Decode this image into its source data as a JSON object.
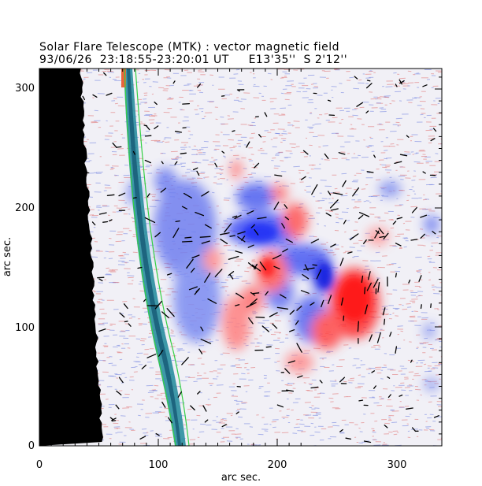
{
  "header": {
    "title": "Solar Flare Telescope (MTK) : vector magnetic field",
    "subtitle": "93/06/26  23:18:55-23:20:01 UT     E13'35''  S 2'12''"
  },
  "axes": {
    "xlabel": "arc sec.",
    "ylabel": "arc sec.",
    "xlim": [
      0,
      338
    ],
    "ylim": [
      0,
      315
    ],
    "xticks": [
      "0",
      "100",
      "200",
      "300"
    ],
    "yticks": [
      "0",
      "100",
      "200",
      "300"
    ]
  },
  "colors": {
    "positive_polarity": "#ff2020",
    "negative_polarity": "#2030ff",
    "limb_band": "#1e8a99",
    "contour": "#30d040",
    "offdisk": "#000000",
    "vectors": "#000000"
  }
}
